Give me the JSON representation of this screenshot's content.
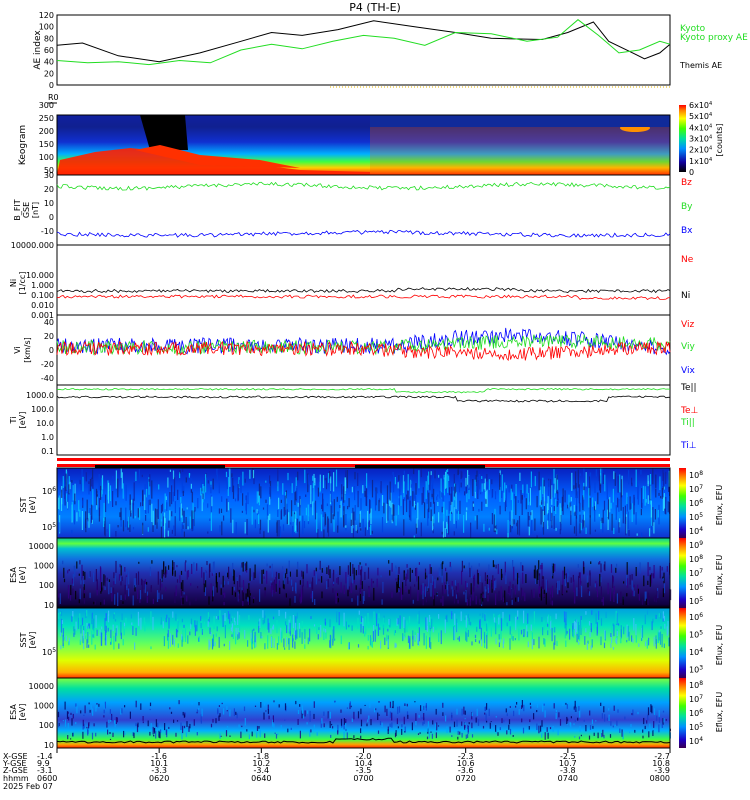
{
  "title": "P4 (TH-E)",
  "footer": {
    "row_labels": [
      "X-GSE",
      "Y-GSE",
      "Z-GSE",
      "hhmm",
      "2025 Feb 07"
    ],
    "columns": [
      {
        "x": "-1.4",
        "y": "9.9",
        "z": "-3.1",
        "t": "0600"
      },
      {
        "x": "-1.6",
        "y": "10.1",
        "z": "-3.3",
        "t": "0620"
      },
      {
        "x": "-1.8",
        "y": "10.2",
        "z": "-3.4",
        "t": "0640"
      },
      {
        "x": "-2.0",
        "y": "10.4",
        "z": "-3.5",
        "t": "0700"
      },
      {
        "x": "-2.3",
        "y": "10.6",
        "z": "-3.6",
        "t": "0720"
      },
      {
        "x": "-2.5",
        "y": "10.7",
        "z": "-3.8",
        "t": "0740"
      },
      {
        "x": "-2.7",
        "y": "10.8",
        "z": "-3.9",
        "t": "0800"
      }
    ]
  },
  "colors": {
    "black": "#000000",
    "green": "#22dd22",
    "red": "#ff0000",
    "blue": "#0000ff"
  },
  "chart_data": [
    {
      "type": "line",
      "panel": "ae",
      "ylabel": "AE index",
      "ylim": [
        0,
        120
      ],
      "yticks": [
        "0",
        "20",
        "40",
        "60",
        "80",
        "100",
        "120"
      ],
      "xlim": [
        0,
        120
      ],
      "series": [
        {
          "name": "Themis AE",
          "color": "black",
          "x": [
            0,
            5,
            12,
            20,
            28,
            36,
            42,
            48,
            55,
            62,
            70,
            78,
            85,
            95,
            100,
            105,
            108,
            112,
            115,
            118,
            120
          ],
          "y": [
            68,
            72,
            50,
            40,
            55,
            75,
            90,
            85,
            95,
            110,
            100,
            90,
            80,
            78,
            90,
            108,
            75,
            58,
            45,
            55,
            70
          ]
        },
        {
          "name": "Kyoto proxy AE",
          "color": "green",
          "x": [
            0,
            6,
            12,
            18,
            24,
            30,
            36,
            42,
            48,
            54,
            60,
            66,
            72,
            78,
            85,
            92,
            98,
            102,
            106,
            110,
            114,
            118,
            120
          ],
          "y": [
            42,
            38,
            40,
            35,
            42,
            38,
            60,
            70,
            62,
            75,
            85,
            80,
            68,
            90,
            88,
            75,
            82,
            112,
            85,
            55,
            60,
            75,
            70
          ]
        }
      ]
    },
    {
      "type": "heatmap",
      "panel": "keogram",
      "ylabel": "Keogram",
      "ylabel2": "R0",
      "ylim": [
        30,
        300
      ],
      "yticks": [
        "30",
        "50",
        "100",
        "150",
        "200",
        "250",
        "300"
      ],
      "colorbar": {
        "label": "[counts]",
        "ticks": [
          "0",
          "1x10^4",
          "2x10^4",
          "3x10^4",
          "4x10^4",
          "5x10^4",
          "6x10^4"
        ]
      }
    },
    {
      "type": "line",
      "panel": "bfield",
      "ylabel": "B_FIT",
      "ylabel2": "GSE",
      "ylabel3": "[nT]",
      "ylim": [
        -20,
        30
      ],
      "yticks": [
        "-10",
        "0",
        "10",
        "20"
      ],
      "series": [
        {
          "name": "Bz",
          "color": "red",
          "level": 22
        },
        {
          "name": "By",
          "color": "green",
          "level": 22
        },
        {
          "name": "Bx",
          "color": "blue",
          "level": -12
        }
      ]
    },
    {
      "type": "line",
      "panel": "density",
      "ylabel": "Ni",
      "ylabel2": "[1/cc]",
      "scale": "log",
      "ylim": [
        0.001,
        10000
      ],
      "yticks": [
        "0.001",
        "0.010",
        "0.100",
        "1.000",
        "10.000"
      ],
      "series": [
        {
          "name": "Ne",
          "color": "red",
          "level": 0.07
        },
        {
          "name": "Ni",
          "color": "black",
          "level": 0.25
        }
      ]
    },
    {
      "type": "line",
      "panel": "velocity",
      "ylabel": "Vi",
      "ylabel2": "[km/s]",
      "ylim": [
        -50,
        50
      ],
      "yticks": [
        "-40",
        "-20",
        "0",
        "20",
        "40"
      ],
      "series": [
        {
          "name": "Viz",
          "color": "red",
          "level": 2
        },
        {
          "name": "Viy",
          "color": "green",
          "level": 4
        },
        {
          "name": "Vix",
          "color": "blue",
          "level": 6
        }
      ]
    },
    {
      "type": "line",
      "panel": "temperature",
      "ylabel": "Ti",
      "ylabel2": "[eV]",
      "scale": "log",
      "ylim": [
        0.05,
        5000
      ],
      "yticks": [
        "0.1",
        "1.0",
        "10.0",
        "100.0",
        "1000.0"
      ],
      "series": [
        {
          "name": "Te||",
          "color": "black",
          "level": 700
        },
        {
          "name": "Te⊥",
          "color": "red",
          "level": 2500
        },
        {
          "name": "Ti||",
          "color": "green",
          "level": 2800
        },
        {
          "name": "Ti⊥",
          "color": "blue",
          "level": 3000
        }
      ]
    },
    {
      "type": "heatmap",
      "panel": "sst_e",
      "ylabel": "SST",
      "ylabel2": "[eV]",
      "yticks": [
        "10^5",
        "10^6"
      ],
      "colorbar": {
        "label": "Eflux, EFU",
        "ticks": [
          "10^4",
          "10^5",
          "10^6",
          "10^7",
          "10^8"
        ]
      }
    },
    {
      "type": "heatmap",
      "panel": "esa_e",
      "ylabel": "ESA",
      "ylabel2": "[eV]",
      "yticks": [
        "10",
        "100",
        "1000",
        "10000"
      ],
      "colorbar": {
        "label": "Eflux, EFU",
        "ticks": [
          "10^5",
          "10^6",
          "10^7",
          "10^8",
          "10^9"
        ]
      }
    },
    {
      "type": "heatmap",
      "panel": "sst_i",
      "ylabel": "SST",
      "ylabel2": "[eV]",
      "yticks": [
        "10^5"
      ],
      "colorbar": {
        "label": "Eflux, EFU",
        "ticks": [
          "10^3",
          "10^4",
          "10^5",
          "10^6"
        ]
      }
    },
    {
      "type": "heatmap",
      "panel": "esa_i",
      "ylabel": "ESA",
      "ylabel2": "[eV]",
      "yticks": [
        "10",
        "100",
        "1000",
        "10000"
      ],
      "colorbar": {
        "label": "Eflux, EFU",
        "ticks": [
          "10^4",
          "10^5",
          "10^6",
          "10^7",
          "10^8"
        ]
      }
    }
  ]
}
